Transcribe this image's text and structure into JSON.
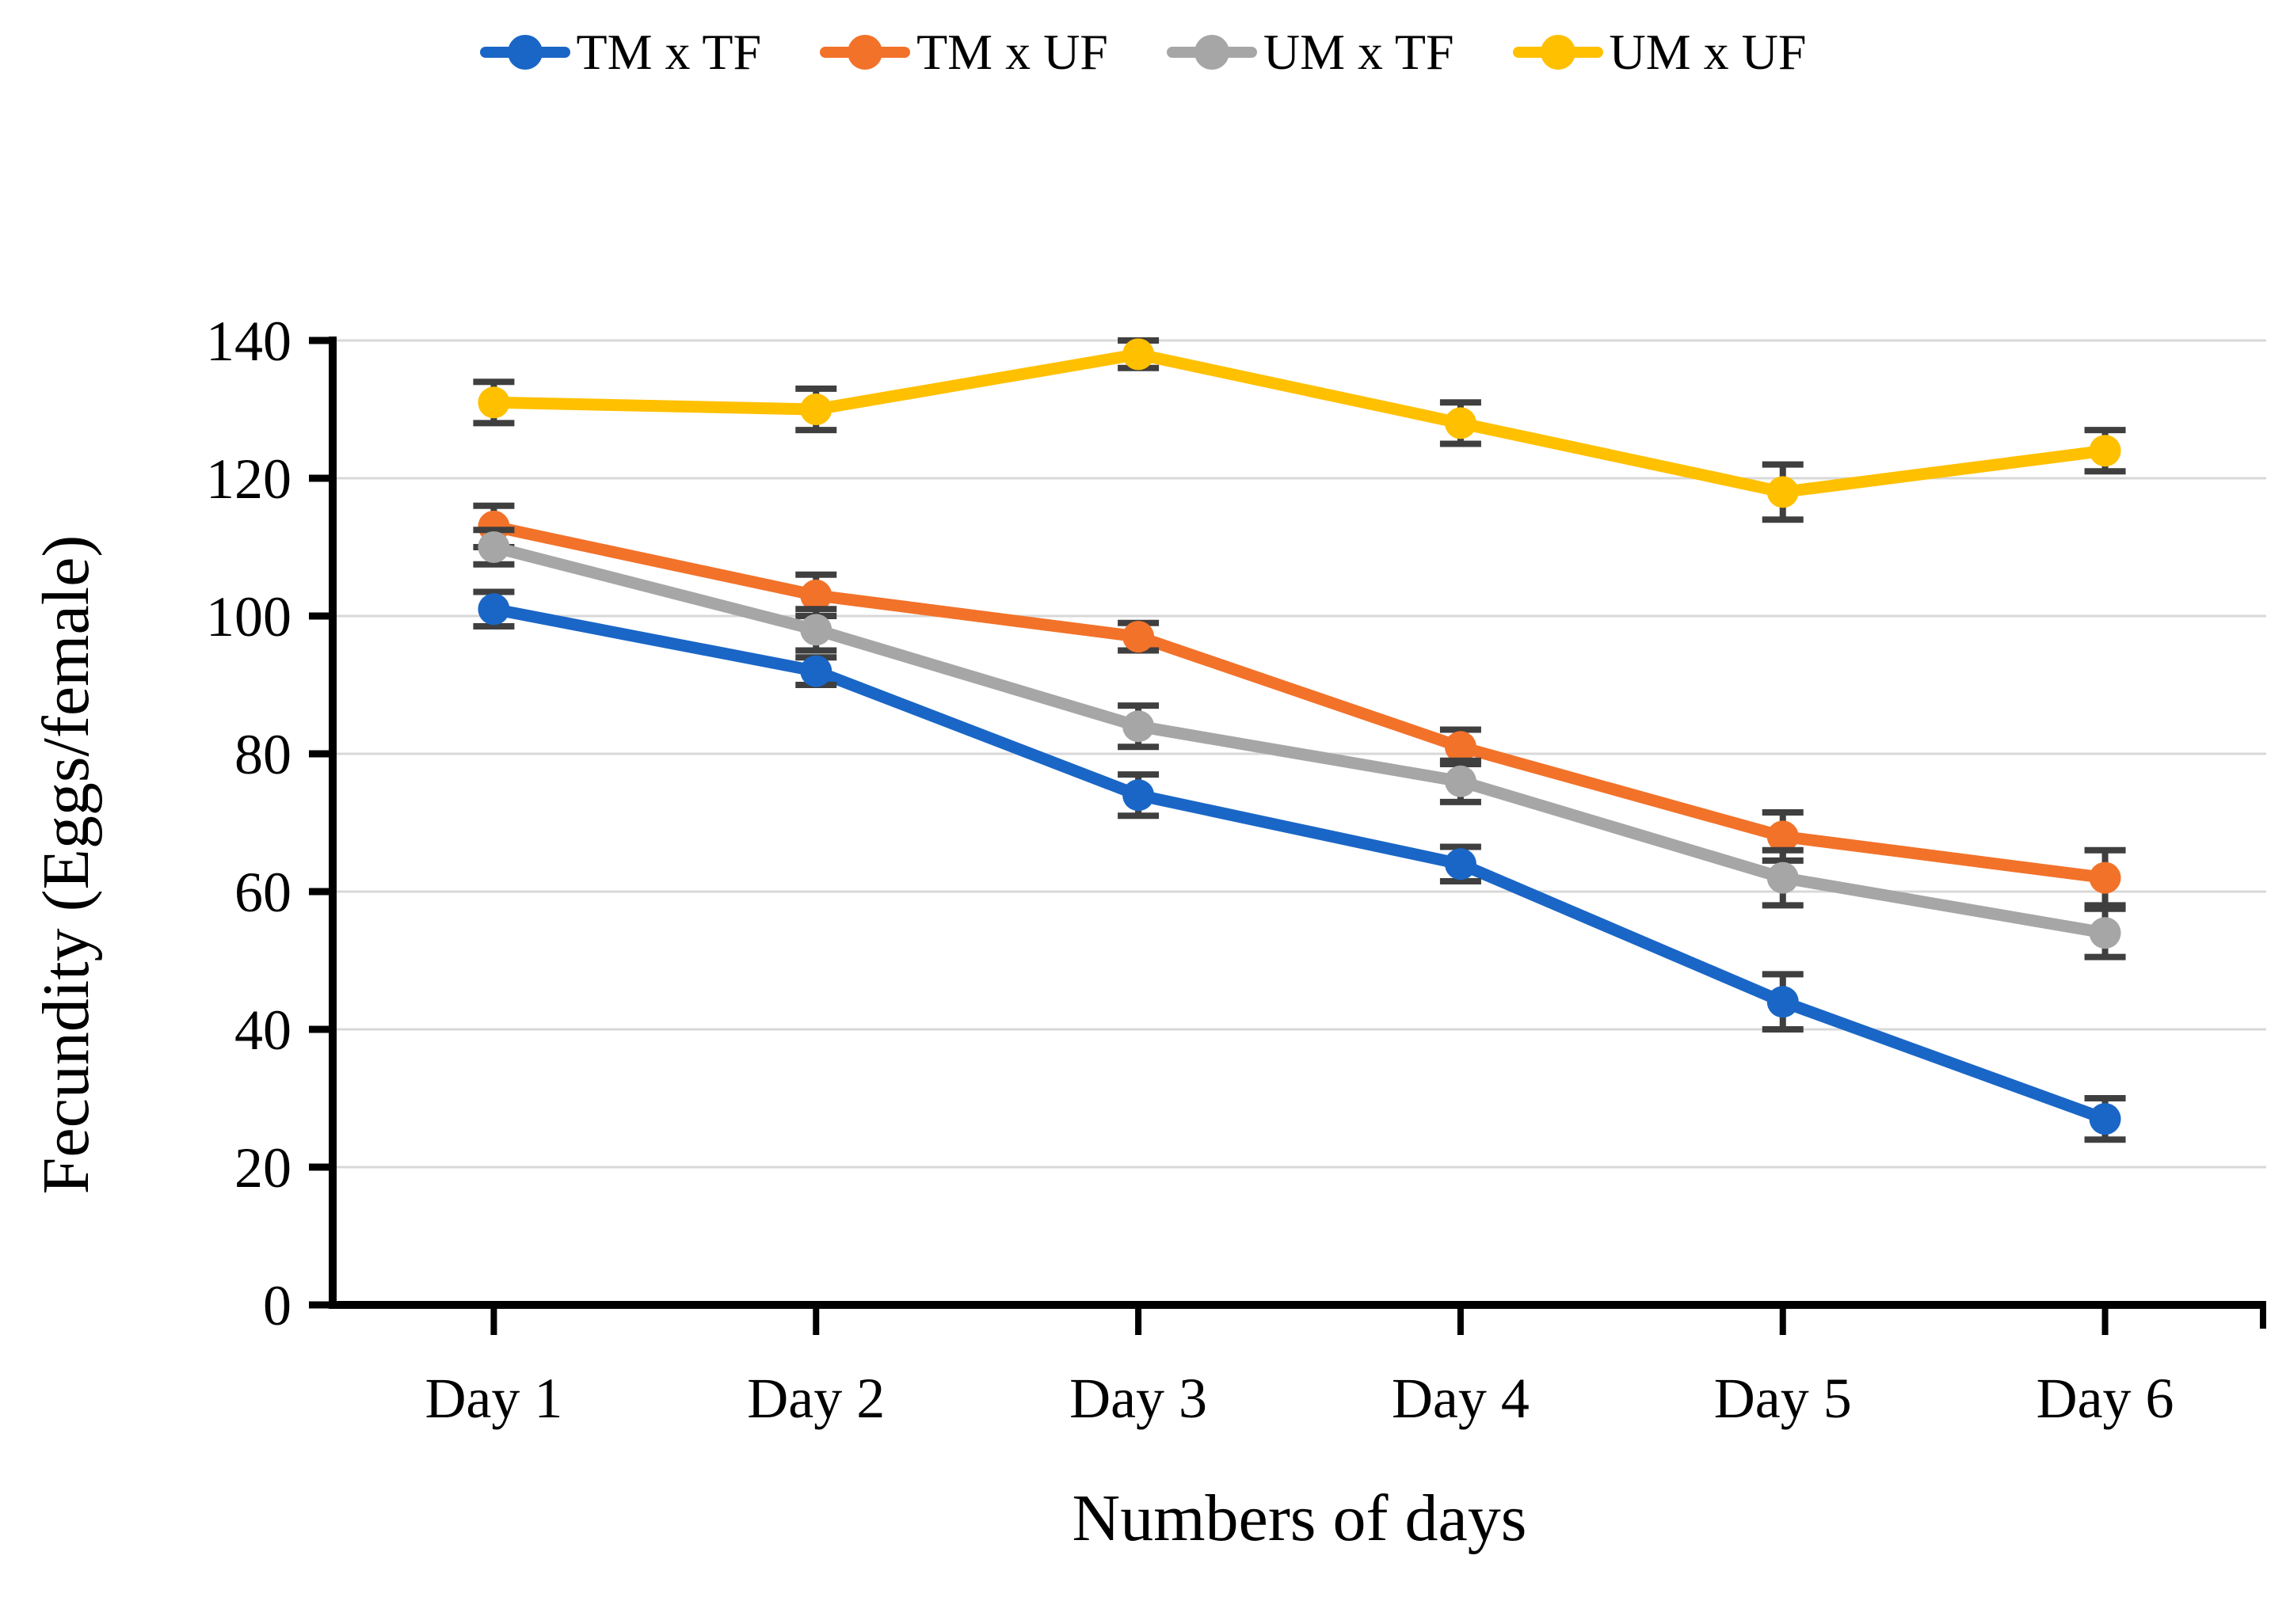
{
  "chart_data": {
    "type": "line",
    "categories": [
      "Day 1",
      "Day 2",
      "Day 3",
      "Day 4",
      "Day 5",
      "Day 6"
    ],
    "series": [
      {
        "name": "TM x TF",
        "color": "#1A66C6",
        "values": [
          101,
          92,
          74,
          64,
          44,
          27
        ],
        "errors": [
          2.5,
          2,
          3,
          2.5,
          4,
          3
        ]
      },
      {
        "name": "TM x UF",
        "color": "#F2722A",
        "values": [
          113,
          103,
          97,
          81,
          68,
          62
        ],
        "errors": [
          3,
          3,
          2,
          2.5,
          3.5,
          4
        ]
      },
      {
        "name": "UM x TF",
        "color": "#A6A6A6",
        "values": [
          110,
          98,
          84,
          76,
          62,
          54
        ],
        "errors": [
          2.5,
          3,
          3,
          3,
          4,
          3.5
        ]
      },
      {
        "name": "UM x UF",
        "color": "#FFC000",
        "values": [
          131,
          130,
          138,
          128,
          118,
          124
        ],
        "errors": [
          3,
          3,
          2,
          3,
          4,
          3
        ]
      }
    ],
    "title": "",
    "xlabel": "Numbers of days",
    "ylabel": "Fecundity (Eggs/female)",
    "ylim": [
      0,
      140
    ],
    "ytick_step": 20,
    "grid": true,
    "legend_position": "top",
    "marker": "circle",
    "error_bars": true,
    "colors": {
      "axis": "#000000",
      "gridline": "#D8D8D8",
      "error_bar": "#3F3F3F",
      "text": "#000000"
    }
  }
}
